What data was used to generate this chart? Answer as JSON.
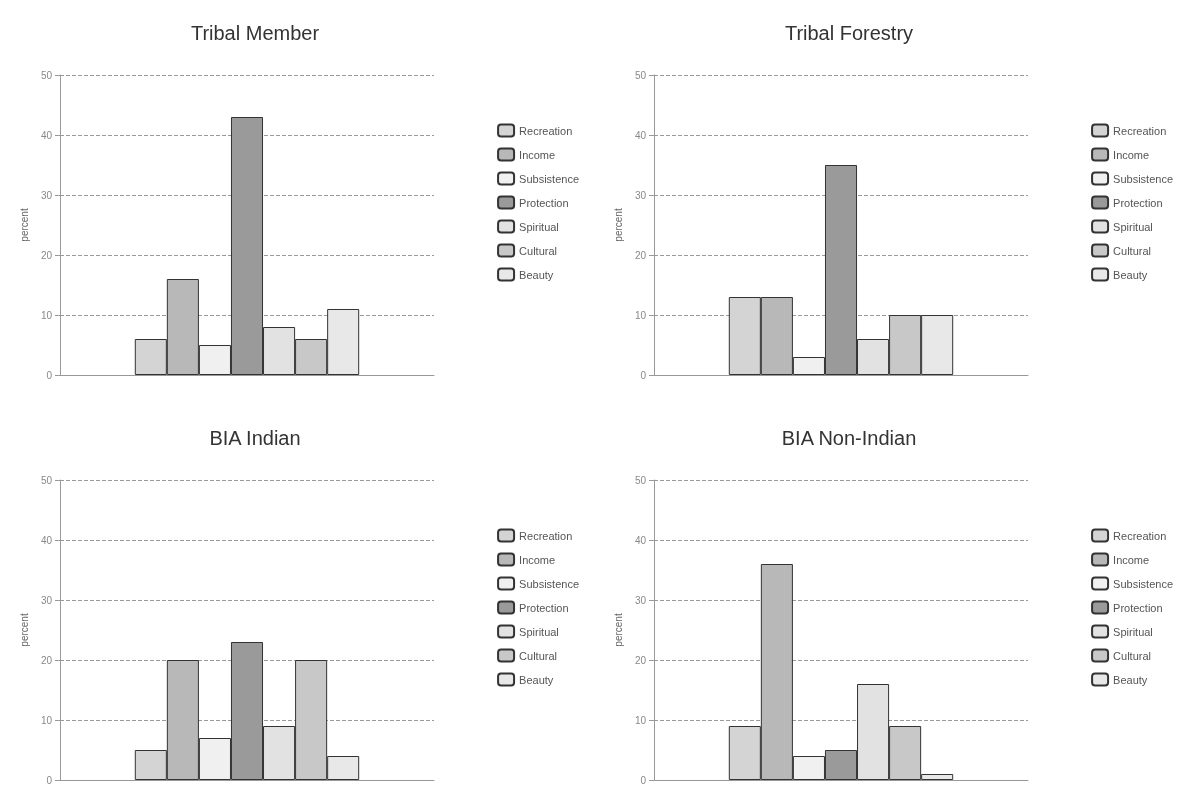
{
  "chart_data": [
    {
      "type": "bar",
      "title": "Tribal Member",
      "ylabel": "percent",
      "categories": [
        null
      ],
      "ylim": [
        0,
        50
      ],
      "yticks": [
        0,
        10,
        20,
        30,
        40,
        50
      ],
      "grid": "y",
      "legend": "right",
      "tick_labels": "y",
      "series": [
        {
          "name": "Recreation",
          "color": "#d4d4d4",
          "values": [
            6
          ]
        },
        {
          "name": "Income",
          "color": "#b8b8b8",
          "values": [
            16
          ]
        },
        {
          "name": "Subsistence",
          "color": "#f0f0f0",
          "values": [
            5
          ]
        },
        {
          "name": "Protection",
          "color": "#9a9a9a",
          "values": [
            43
          ]
        },
        {
          "name": "Spiritual",
          "color": "#e2e2e2",
          "values": [
            8
          ]
        },
        {
          "name": "Cultural",
          "color": "#c8c8c8",
          "values": [
            6
          ]
        },
        {
          "name": "Beauty",
          "color": "#e8e8e8",
          "values": [
            11
          ]
        }
      ]
    },
    {
      "type": "bar",
      "title": "Tribal Forestry",
      "ylabel": "percent",
      "categories": [
        null
      ],
      "ylim": [
        0,
        50
      ],
      "yticks": [
        0,
        10,
        20,
        30,
        40,
        50
      ],
      "grid": "y",
      "legend": "right",
      "tick_labels": "y",
      "series": [
        {
          "name": "Recreation",
          "color": "#d4d4d4",
          "values": [
            13
          ]
        },
        {
          "name": "Income",
          "color": "#b8b8b8",
          "values": [
            13
          ]
        },
        {
          "name": "Subsistence",
          "color": "#f0f0f0",
          "values": [
            3
          ]
        },
        {
          "name": "Protection",
          "color": "#9a9a9a",
          "values": [
            35
          ]
        },
        {
          "name": "Spiritual",
          "color": "#e2e2e2",
          "values": [
            6
          ]
        },
        {
          "name": "Cultural",
          "color": "#c8c8c8",
          "values": [
            10
          ]
        },
        {
          "name": "Beauty",
          "color": "#e8e8e8",
          "values": [
            10
          ]
        }
      ]
    },
    {
      "type": "bar",
      "title": "BIA Indian",
      "ylabel": "percent",
      "categories": [
        null
      ],
      "ylim": [
        0,
        50
      ],
      "yticks": [
        0,
        10,
        20,
        30,
        40,
        50
      ],
      "grid": "y",
      "legend": "right",
      "tick_labels": "y",
      "series": [
        {
          "name": "Recreation",
          "color": "#d4d4d4",
          "values": [
            5
          ]
        },
        {
          "name": "Income",
          "color": "#b8b8b8",
          "values": [
            20
          ]
        },
        {
          "name": "Subsistence",
          "color": "#f0f0f0",
          "values": [
            7
          ]
        },
        {
          "name": "Protection",
          "color": "#9a9a9a",
          "values": [
            23
          ]
        },
        {
          "name": "Spiritual",
          "color": "#e2e2e2",
          "values": [
            9
          ]
        },
        {
          "name": "Cultural",
          "color": "#c8c8c8",
          "values": [
            20
          ]
        },
        {
          "name": "Beauty",
          "color": "#e8e8e8",
          "values": [
            4
          ]
        }
      ]
    },
    {
      "type": "bar",
      "title": "BIA Non-Indian",
      "ylabel": "percent",
      "categories": [
        null
      ],
      "ylim": [
        0,
        50
      ],
      "yticks": [
        0,
        10,
        20,
        30,
        40,
        50
      ],
      "grid": "y",
      "legend": "right",
      "tick_labels": "y",
      "series": [
        {
          "name": "Recreation",
          "color": "#d4d4d4",
          "values": [
            9
          ]
        },
        {
          "name": "Income",
          "color": "#b8b8b8",
          "values": [
            36
          ]
        },
        {
          "name": "Subsistence",
          "color": "#f0f0f0",
          "values": [
            4
          ]
        },
        {
          "name": "Protection",
          "color": "#9a9a9a",
          "values": [
            5
          ]
        },
        {
          "name": "Spiritual",
          "color": "#e2e2e2",
          "values": [
            16
          ]
        },
        {
          "name": "Cultural",
          "color": "#c8c8c8",
          "values": [
            9
          ]
        },
        {
          "name": "Beauty",
          "color": "#e8e8e8",
          "values": [
            1
          ]
        }
      ]
    }
  ]
}
